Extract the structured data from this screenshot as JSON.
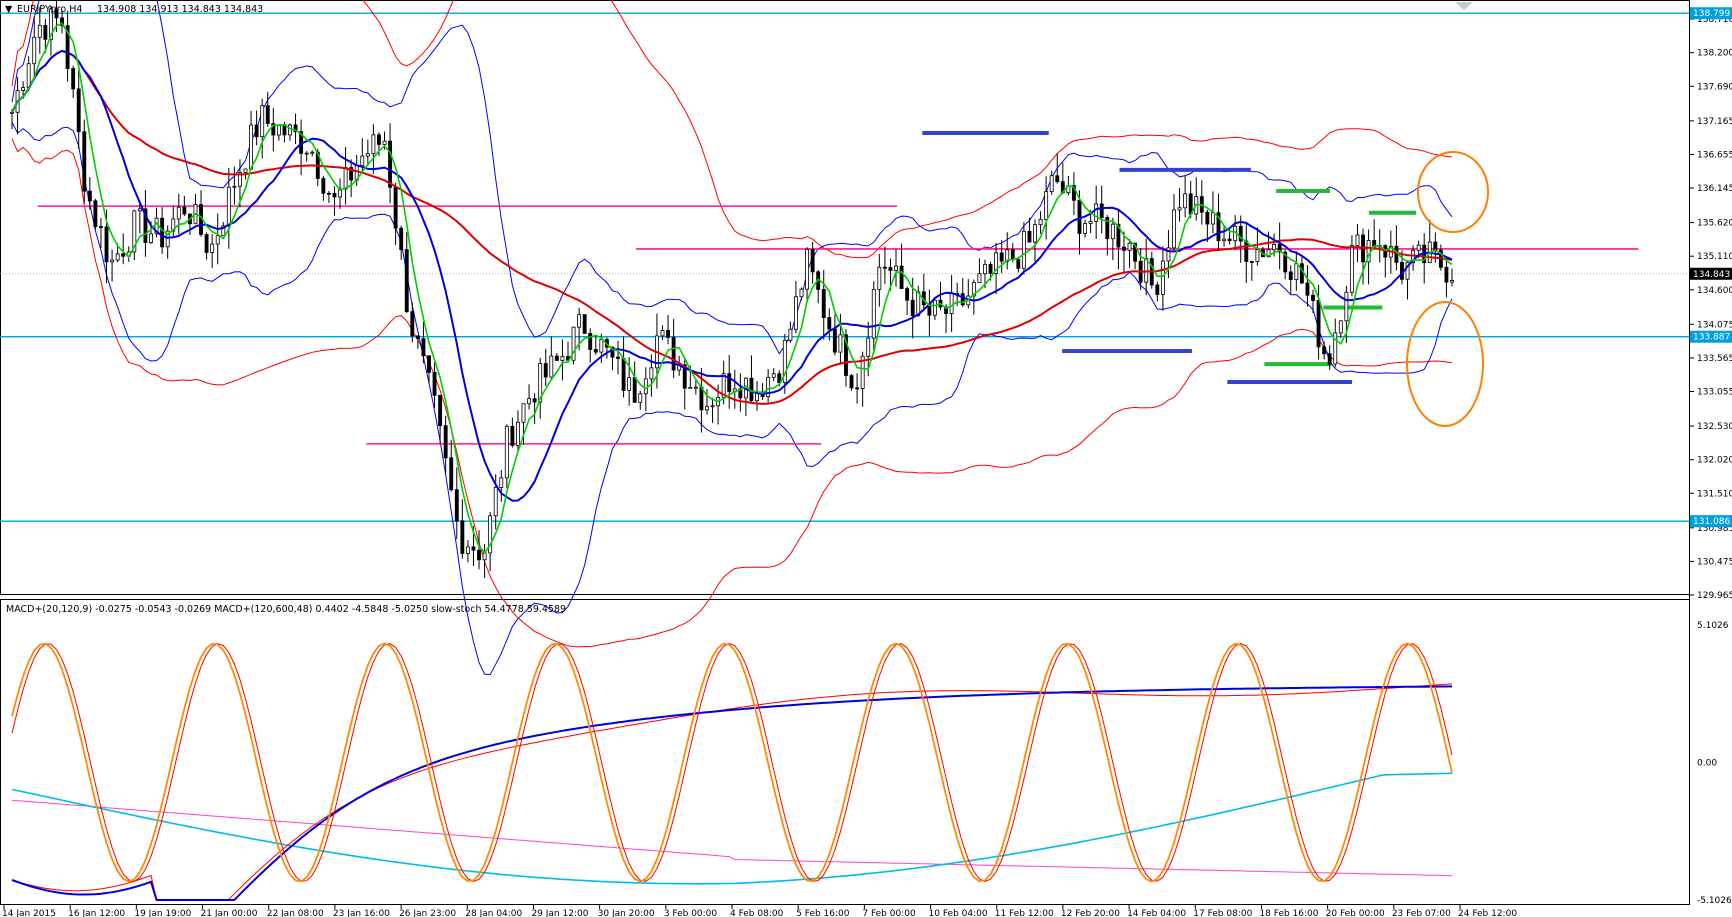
{
  "header": {
    "symbol": "EURJPYpro,H4",
    "ohlc": "134.908 134.913 134.843 134.843"
  },
  "indicator_header": "MACD+(20,120,9) -0.0275 -0.0543 -0.0269  MACD+(120,600,48) 0.4402 -4.5848 -5.0250  slow-stoch 54.4778 59.4589",
  "colors": {
    "candle": "#000000",
    "ma_fast": "#00cc00",
    "ma_mid": "#0000dd",
    "ma_slow": "#e00000",
    "bollinger": "#0000ff",
    "envelope": "#ff0000",
    "level_line": "#00a0e0",
    "zone_line": "#ff1493",
    "stoch": "#ff8c00",
    "annotation_circle": "#ff7f00"
  },
  "chart_data": [
    {
      "type": "candlestick",
      "title": "EURJPYpro,H4",
      "ylim": [
        129.965,
        139.0
      ],
      "y_ticks": [
        138.71,
        138.2,
        137.69,
        137.165,
        136.655,
        136.145,
        135.62,
        135.11,
        134.6,
        134.075,
        133.565,
        133.055,
        132.53,
        132.02,
        131.51,
        130.985,
        130.475,
        129.965
      ],
      "x_ticks": [
        "14 Jan 2015",
        "16 Jan 12:00",
        "19 Jan 19:00",
        "21 Jan 00:00",
        "22 Jan 08:00",
        "23 Jan 16:00",
        "26 Jan 23:00",
        "28 Jan 04:00",
        "29 Jan 12:00",
        "30 Jan 20:00",
        "3 Feb 00:00",
        "4 Feb 08:00",
        "5 Feb 16:00",
        "7 Feb 00:00",
        "10 Feb 04:00",
        "11 Feb 12:00",
        "12 Feb 20:00",
        "14 Feb 04:00",
        "17 Feb 08:00",
        "18 Feb 16:00",
        "20 Feb 00:00",
        "23 Feb 07:00",
        "24 Feb 12:00"
      ],
      "last_price": 134.843,
      "price_tags": [
        138.799,
        133.887,
        131.086
      ],
      "horizontal_levels": [
        138.799,
        133.887,
        131.086
      ],
      "zones": [
        {
          "from": 0.02,
          "to": 0.53,
          "price": 135.87,
          "color": "pink"
        },
        {
          "from": 0.375,
          "to": 0.97,
          "price": 135.22,
          "color": "pink"
        },
        {
          "from": 0.215,
          "to": 0.485,
          "price": 132.26,
          "color": "pink"
        },
        {
          "from": 0.545,
          "to": 0.62,
          "price": 136.98,
          "color": "blue"
        },
        {
          "from": 0.662,
          "to": 0.74,
          "price": 136.42,
          "color": "blue"
        },
        {
          "from": 0.628,
          "to": 0.705,
          "price": 133.67,
          "color": "blue"
        },
        {
          "from": 0.726,
          "to": 0.8,
          "price": 133.2,
          "color": "blue"
        },
        {
          "from": 0.755,
          "to": 0.787,
          "price": 136.1,
          "color": "green"
        },
        {
          "from": 0.81,
          "to": 0.838,
          "price": 135.77,
          "color": "green"
        },
        {
          "from": 0.783,
          "to": 0.818,
          "price": 134.33,
          "color": "green"
        },
        {
          "from": 0.748,
          "to": 0.788,
          "price": 133.47,
          "color": "green"
        }
      ],
      "series": [
        {
          "name": "ohlc_anchor",
          "values": [
            137.3,
            138.6,
            138.7,
            136.1,
            135.0,
            135.6,
            135.4,
            135.9,
            135.2,
            136.3,
            137.2,
            137.0,
            136.8,
            135.9,
            136.6,
            136.9,
            134.2,
            132.8,
            130.9,
            130.6,
            132.4,
            133.1,
            133.5,
            134.1,
            133.6,
            133.0,
            133.9,
            133.4,
            132.9,
            133.3,
            133.1,
            133.5,
            135.0,
            134.0,
            133.2,
            135.1,
            134.5,
            134.2,
            134.3,
            134.7,
            135.0,
            135.3,
            136.3,
            135.7,
            135.6,
            135.3,
            134.6,
            136.0,
            135.7,
            135.4,
            135.2,
            135.3,
            134.7,
            133.5,
            135.2,
            135.4,
            134.9,
            135.1,
            134.9
          ]
        }
      ]
    },
    {
      "type": "line",
      "title": "MACD+(20,120,9) MACD+(120,600,48) slow-stoch",
      "ylim": [
        -5.1026,
        5.1026
      ],
      "y_ticks": [
        5.1026,
        0.0,
        -5.1026
      ]
    }
  ]
}
